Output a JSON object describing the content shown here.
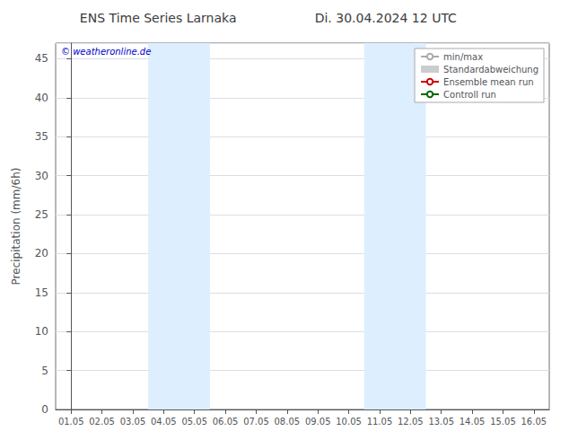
{
  "chart_data": {
    "type": "line",
    "title": "ENS Time Series Larnaka",
    "subtitle": "Di. 30.04.2024 12 UTC",
    "ylabel": "Precipitation (mm/6h)",
    "categories": [
      "01.05",
      "02.05",
      "03.05",
      "04.05",
      "05.05",
      "06.05",
      "07.05",
      "08.05",
      "09.05",
      "10.05",
      "11.05",
      "12.05",
      "13.05",
      "14.05",
      "15.05",
      "16.05"
    ],
    "series": [
      {
        "name": "min/max",
        "color": "#aaaaaa",
        "type": "line",
        "values": [
          null,
          null,
          null,
          null,
          null,
          null,
          null,
          null,
          null,
          null,
          null,
          null,
          null,
          null,
          null,
          null
        ]
      },
      {
        "name": "Standardabweichung",
        "color": "#cccccc",
        "type": "area",
        "values": [
          null,
          null,
          null,
          null,
          null,
          null,
          null,
          null,
          null,
          null,
          null,
          null,
          null,
          null,
          null,
          null
        ]
      },
      {
        "name": "Ensemble mean run",
        "color": "#cc0000",
        "type": "line",
        "values": [
          null,
          null,
          null,
          null,
          null,
          null,
          null,
          null,
          null,
          null,
          null,
          null,
          null,
          null,
          null,
          null
        ]
      },
      {
        "name": "Controll run",
        "color": "#006600",
        "type": "line",
        "values": [
          null,
          null,
          null,
          null,
          null,
          null,
          null,
          null,
          null,
          null,
          null,
          null,
          null,
          null,
          null,
          null
        ]
      }
    ],
    "shade_bands": [
      {
        "from": "04.05",
        "to": "05.05",
        "color": "#ddeeff"
      },
      {
        "from": "11.05",
        "to": "12.05",
        "color": "#ddeeff"
      }
    ],
    "annotations": [
      {
        "text": "© weatheronline.de",
        "color": "#0000cc"
      }
    ],
    "ylim": [
      0,
      47
    ],
    "yticks": [
      0,
      5,
      10,
      15,
      20,
      25,
      30,
      35,
      40,
      45
    ],
    "grid": true,
    "legend": "upper right"
  }
}
